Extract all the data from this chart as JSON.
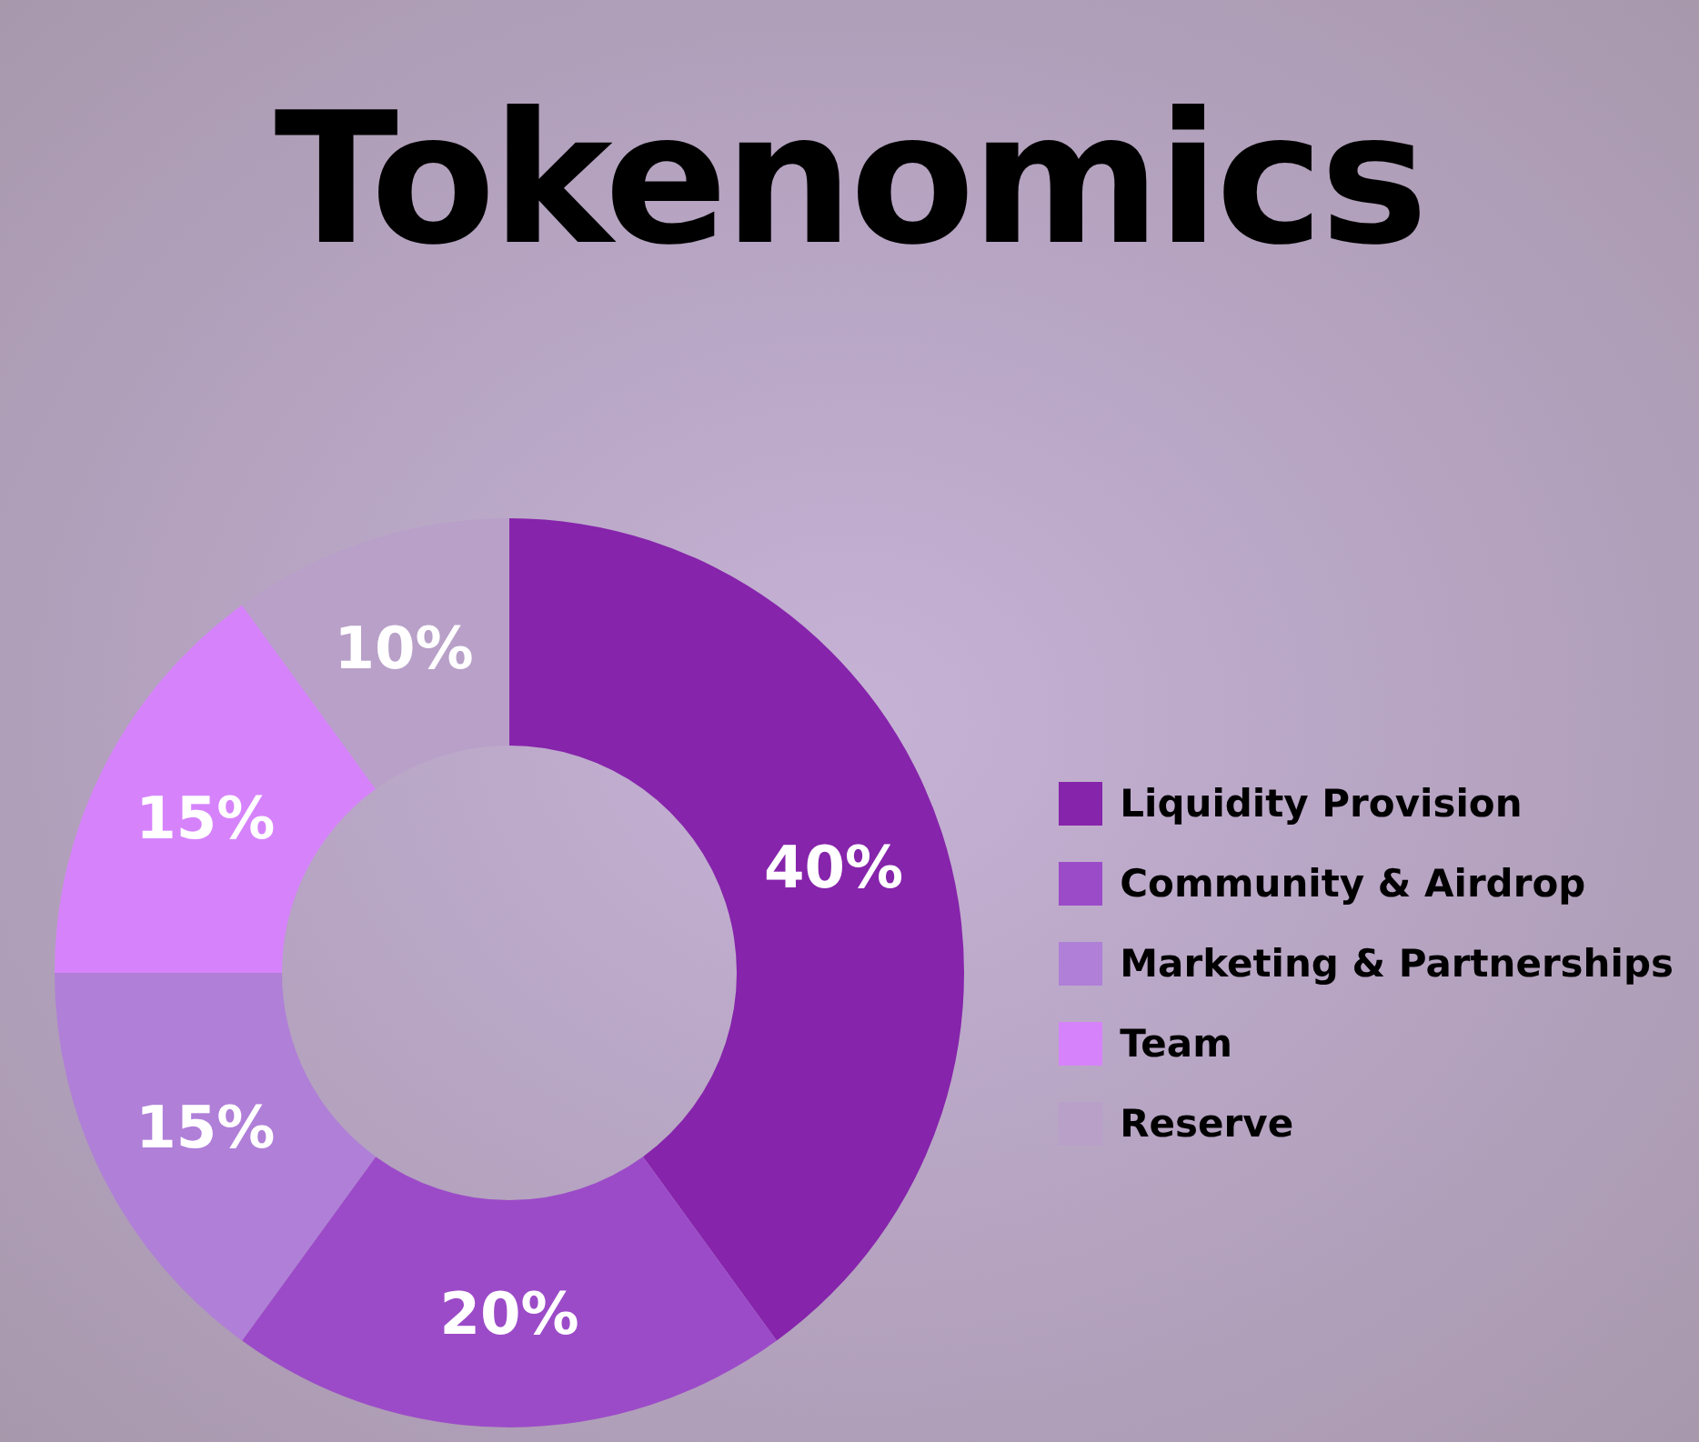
{
  "chart_data": {
    "type": "donut",
    "title": "Tokenomics",
    "categories": [
      "Liquidity Provision",
      "Community & Airdrop",
      "Marketing & Partnerships",
      "Team",
      "Reserve"
    ],
    "values": [
      40,
      20,
      15,
      15,
      10
    ],
    "colors": [
      "#8624ab",
      "#9c4bc8",
      "#b07fd8",
      "#d683fb",
      "#b8a0c8"
    ],
    "value_labels": [
      "40%",
      "20%",
      "15%",
      "15%",
      "10%"
    ],
    "legend": "right"
  }
}
